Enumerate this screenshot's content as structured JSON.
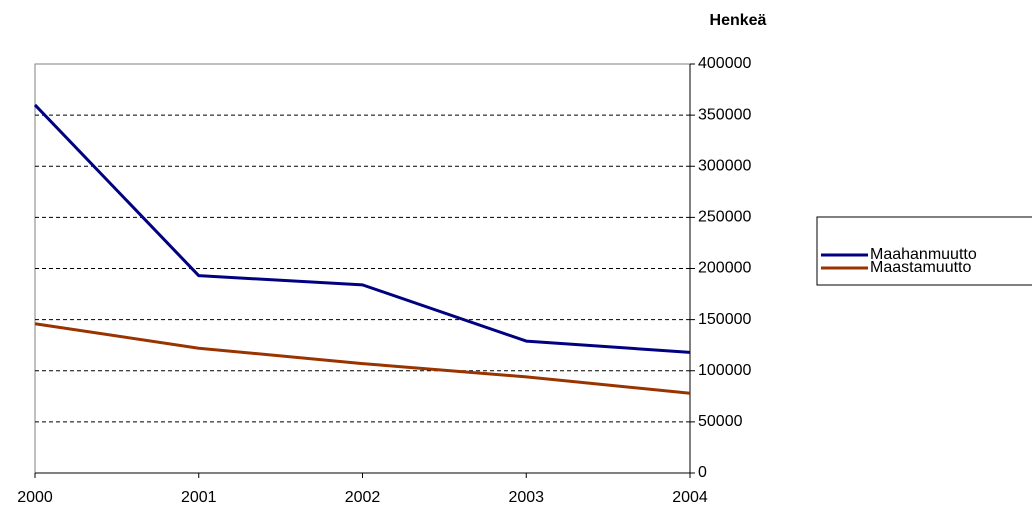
{
  "chart_data": {
    "type": "line",
    "y_axis_label": "Henkeä",
    "x": [
      2000,
      2001,
      2002,
      2003,
      2004
    ],
    "xlim": [
      2000,
      2004
    ],
    "xticks": [
      2000,
      2001,
      2002,
      2003,
      2004
    ],
    "ylim": [
      0,
      400000
    ],
    "yticks": [
      0,
      50000,
      100000,
      150000,
      200000,
      250000,
      300000,
      350000,
      400000
    ],
    "y_axis_side": "right",
    "grid": true,
    "legend": "right",
    "series": [
      {
        "name": "Maahanmuutto",
        "color": "#000080",
        "values": [
          360000,
          193000,
          184000,
          129000,
          118000
        ]
      },
      {
        "name": "Maastamuutto",
        "color": "#993300",
        "values": [
          146000,
          122000,
          107000,
          94000,
          78000
        ]
      }
    ]
  }
}
